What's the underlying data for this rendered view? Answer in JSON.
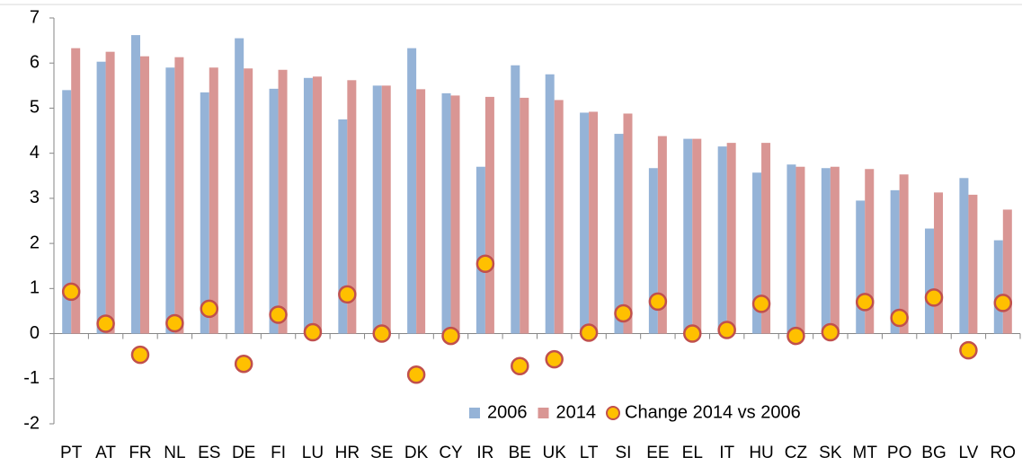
{
  "chart_data": {
    "type": "bar",
    "categories": [
      "PT",
      "AT",
      "FR",
      "NL",
      "ES",
      "DE",
      "FI",
      "LU",
      "HR",
      "SE",
      "DK",
      "CY",
      "IR",
      "BE",
      "UK",
      "LT",
      "SI",
      "EE",
      "EL",
      "IT",
      "HU",
      "CZ",
      "SK",
      "MT",
      "PO",
      "BG",
      "LV",
      "RO"
    ],
    "series": [
      {
        "name": "2006",
        "color": "#95b3d7",
        "type": "bar",
        "values": [
          5.4,
          6.03,
          6.62,
          5.9,
          5.35,
          6.55,
          5.43,
          5.67,
          4.75,
          5.5,
          6.33,
          5.33,
          3.7,
          5.95,
          5.75,
          4.9,
          4.43,
          3.67,
          4.32,
          4.15,
          3.57,
          3.75,
          3.67,
          2.95,
          3.18,
          2.33,
          3.45,
          2.07
        ]
      },
      {
        "name": "2014",
        "color": "#d99694",
        "type": "bar",
        "values": [
          6.33,
          6.25,
          6.15,
          6.13,
          5.9,
          5.88,
          5.85,
          5.7,
          5.62,
          5.5,
          5.42,
          5.28,
          5.25,
          5.23,
          5.18,
          4.92,
          4.88,
          4.38,
          4.32,
          4.23,
          4.23,
          3.7,
          3.7,
          3.65,
          3.53,
          3.13,
          3.08,
          2.75
        ]
      },
      {
        "name": "Change 2014 vs 2006",
        "color": "#ffc000",
        "type": "scatter",
        "values": [
          0.93,
          0.22,
          -0.47,
          0.23,
          0.55,
          -0.67,
          0.42,
          0.03,
          0.87,
          0,
          -0.91,
          -0.05,
          1.55,
          -0.72,
          -0.57,
          0.02,
          0.45,
          0.71,
          0,
          0.08,
          0.66,
          -0.05,
          0.03,
          0.7,
          0.35,
          0.8,
          -0.37,
          0.68
        ]
      }
    ],
    "ylim": [
      -2,
      7
    ],
    "yticks": [
      -2,
      -1,
      0,
      1,
      2,
      3,
      4,
      5,
      6,
      7
    ],
    "grid": false,
    "legend": "bottom"
  }
}
